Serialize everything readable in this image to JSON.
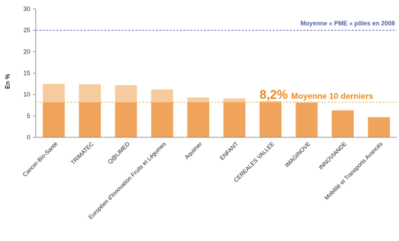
{
  "chart_data": {
    "type": "bar",
    "ylabel": "En %",
    "ylim": [
      0,
      30
    ],
    "yticks": [
      0,
      5,
      10,
      15,
      20,
      25,
      30
    ],
    "grid": false,
    "categories": [
      "Cancer-Bio-Santé",
      "TRIMATEC",
      "Q@LIMED",
      "Européen d'Innovation Fruits et Légumes",
      "Aquimer",
      "ENFANT",
      "CEREALES VALLEE",
      "IMAGINOVE",
      "INNOVIANDE",
      "Mobilité et Transports Avancés"
    ],
    "values": [
      12.5,
      12.4,
      12.2,
      11.2,
      9.3,
      9.1,
      8.5,
      8.1,
      6.3,
      4.7
    ],
    "reference_lines": [
      {
        "value": 25,
        "label": "Moyenne « PME » pôles en 2008",
        "color": "#4a5aa8"
      },
      {
        "value": 8.2,
        "label_value": "8,2%",
        "label": "Moyenne 10 derniers",
        "color": "#e8891a"
      }
    ],
    "colors": {
      "bar": "#f0a35a",
      "bar_above_average": "#f6cc9e",
      "axis": "#8a8a8a"
    }
  }
}
